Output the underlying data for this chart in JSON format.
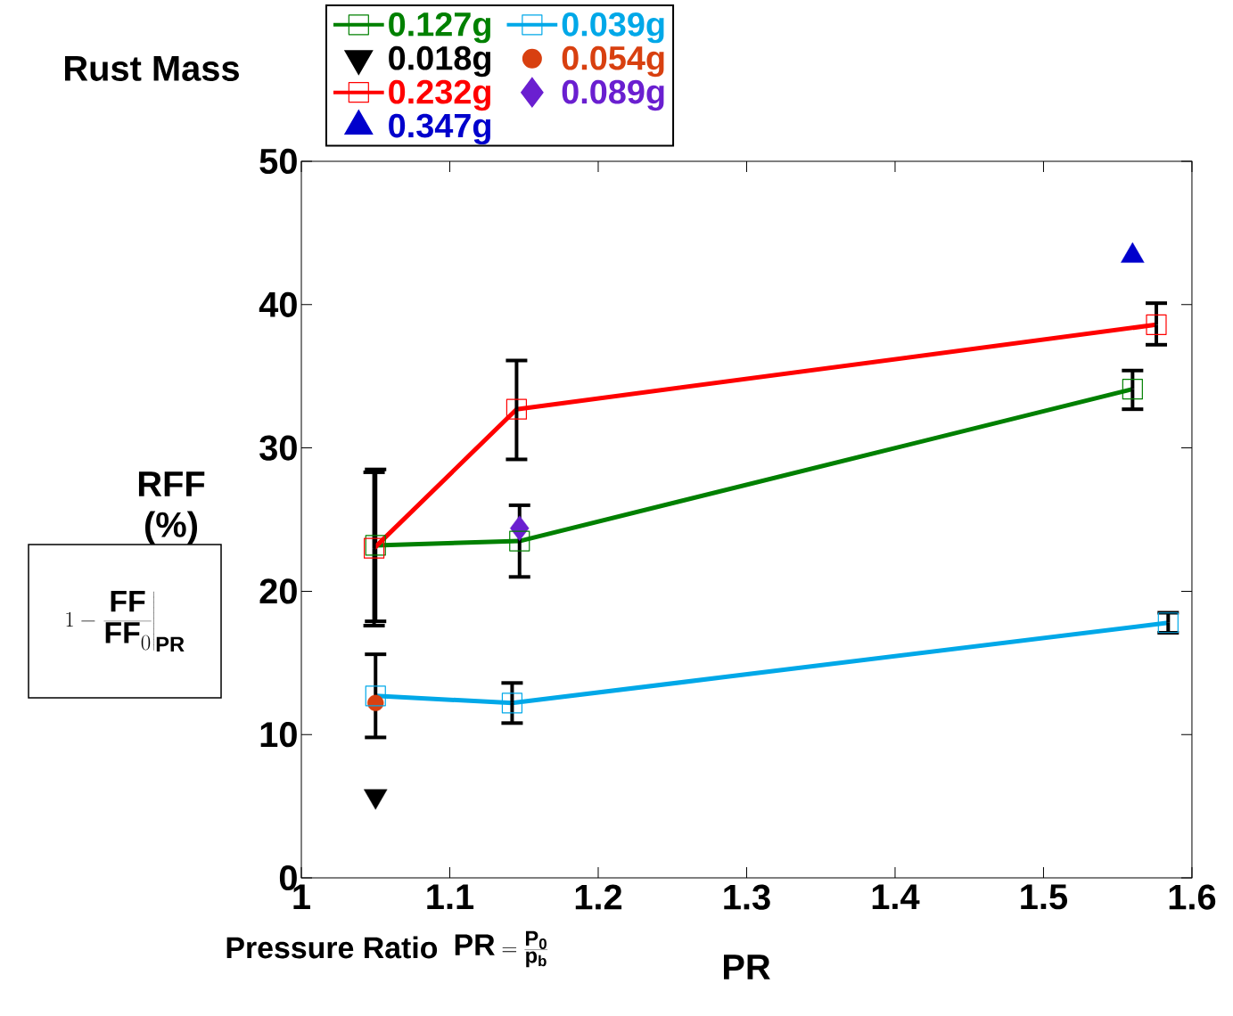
{
  "chart_data": {
    "type": "line",
    "legend_title": "Rust Mass",
    "xlabel": "PR",
    "ylabel": "RFF (%)",
    "annotations": [
      "Pressure Ratio",
      "\\mathbf{PR}=\\frac{\\mathbf{P_0}}{\\mathbf{p_b}}",
      "1-\\left.\\frac{\\mathsf{\\mathbf{FF}}}{\\mathsf{\\mathbf{FF}}_0}\\right|_{\\mathsf{\\mathbf{PR}}}"
    ],
    "xlim": [
      1,
      1.6
    ],
    "xticks": [
      1,
      1.1,
      1.2,
      1.3,
      1.4,
      1.5,
      1.6
    ],
    "ylim": [
      0,
      50
    ],
    "yticks": [
      0,
      10,
      20,
      30,
      40,
      50
    ],
    "legend": "top left",
    "series": [
      {
        "name": "0.127g",
        "marker": "square",
        "color": "#008000",
        "x": [
          1.05,
          1.147,
          1.56
        ],
        "values": [
          23.2,
          23.5,
          34.1
        ],
        "errors": [
          [
            17.9,
            28.5
          ],
          [
            21.0,
            26.0
          ],
          [
            32.7,
            35.4
          ]
        ]
      },
      {
        "name": "0.039g",
        "marker": "square",
        "color": "#00a8e8",
        "x": [
          1.05,
          1.142,
          1.584
        ],
        "values": [
          12.7,
          12.2,
          17.8
        ],
        "errors": [
          [
            9.8,
            15.6
          ],
          [
            10.8,
            13.6
          ],
          [
            17.1,
            18.5
          ]
        ]
      },
      {
        "name": "0.018g",
        "type": "scatter",
        "marker": "triangle down",
        "color": "#000000",
        "x": [
          1.05
        ],
        "values": [
          5.7
        ]
      },
      {
        "name": "0.054g",
        "type": "scatter",
        "marker": "circle",
        "color": "#d84010",
        "x": [
          1.05
        ],
        "values": [
          12.2
        ]
      },
      {
        "name": "0.232g",
        "marker": "square",
        "color": "#ff0000",
        "x": [
          1.049,
          1.145,
          1.576
        ],
        "values": [
          23.0,
          32.7,
          38.6
        ],
        "errors": [
          [
            17.6,
            28.3
          ],
          [
            29.2,
            36.1
          ],
          [
            37.2,
            40.1
          ]
        ]
      },
      {
        "name": "0.089g",
        "type": "scatter",
        "marker": "diamond",
        "color": "#6a1fd0",
        "x": [
          1.147
        ],
        "values": [
          24.4
        ]
      },
      {
        "name": "0.347g",
        "type": "scatter",
        "marker": "triangle",
        "color": "#0000cc",
        "x": [
          1.56
        ],
        "values": [
          43.4
        ]
      }
    ]
  }
}
